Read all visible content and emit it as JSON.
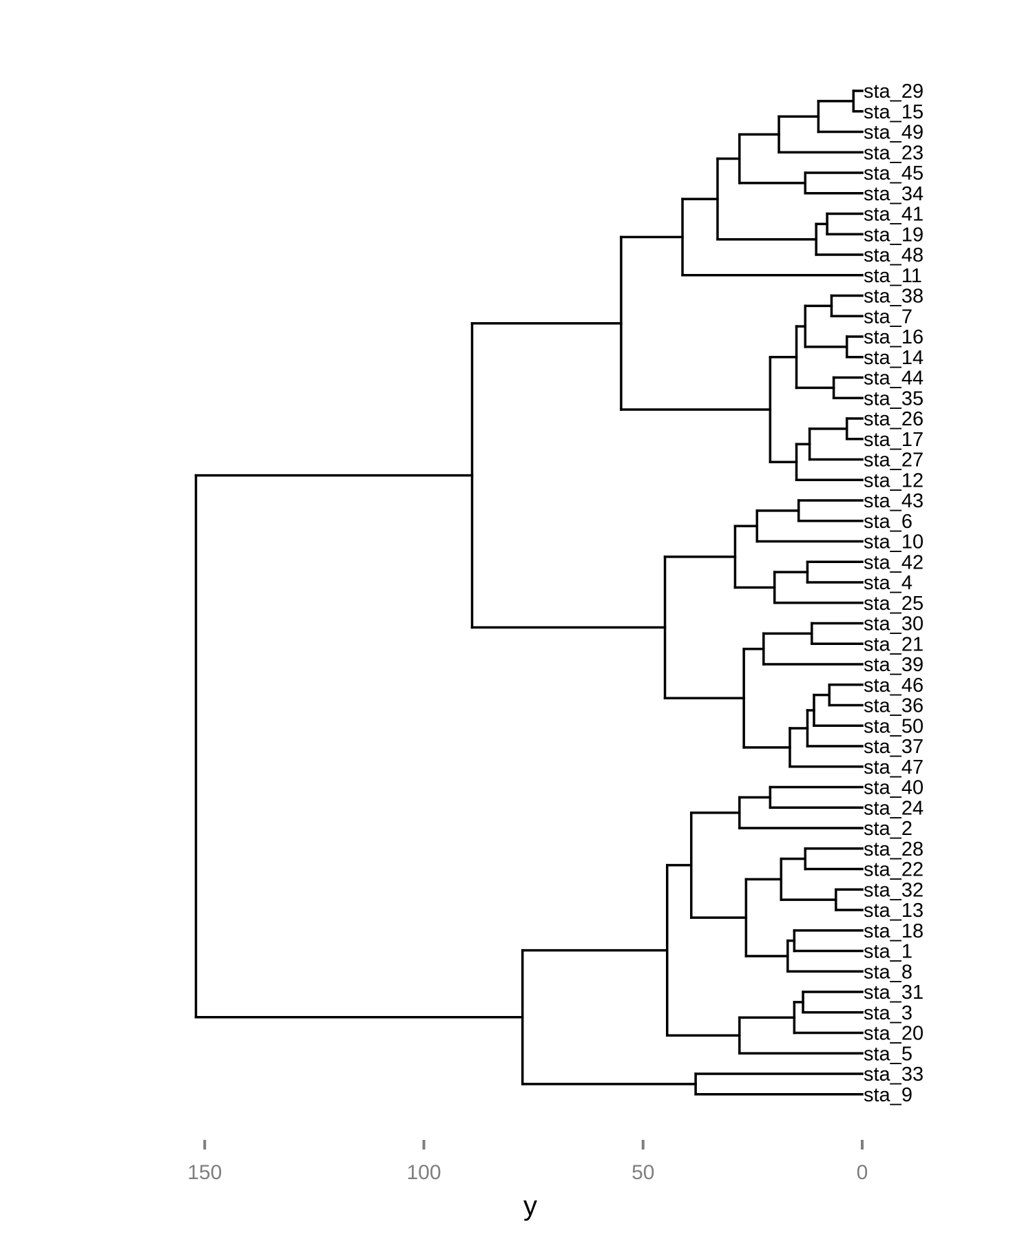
{
  "chart_data": {
    "type": "dendrogram",
    "orientation": "horizontal",
    "xlabel": "y",
    "x_ticks": [
      150,
      100,
      50,
      0
    ],
    "x_reversed": true,
    "leaf_order": [
      "sta_29",
      "sta_15",
      "sta_49",
      "sta_23",
      "sta_45",
      "sta_34",
      "sta_41",
      "sta_19",
      "sta_48",
      "sta_11",
      "sta_38",
      "sta_7",
      "sta_16",
      "sta_14",
      "sta_44",
      "sta_35",
      "sta_26",
      "sta_17",
      "sta_27",
      "sta_12",
      "sta_43",
      "sta_6",
      "sta_10",
      "sta_42",
      "sta_4",
      "sta_25",
      "sta_30",
      "sta_21",
      "sta_39",
      "sta_46",
      "sta_36",
      "sta_50",
      "sta_37",
      "sta_47",
      "sta_40",
      "sta_24",
      "sta_2",
      "sta_28",
      "sta_22",
      "sta_32",
      "sta_13",
      "sta_18",
      "sta_1",
      "sta_8",
      "sta_31",
      "sta_3",
      "sta_20",
      "sta_5",
      "sta_33",
      "sta_9"
    ],
    "tree": {
      "h": 152,
      "c": [
        {
          "h": 89,
          "c": [
            {
              "h": 55,
              "c": [
                {
                  "h": 41,
                  "c": [
                    {
                      "h": 33,
                      "c": [
                        {
                          "h": 28,
                          "c": [
                            {
                              "h": 19,
                              "c": [
                                {
                                  "h": 10,
                                  "c": [
                                    {
                                      "h": 2,
                                      "c": [
                                        "sta_29",
                                        "sta_15"
                                      ]
                                    },
                                    "sta_49"
                                  ]
                                },
                                "sta_23"
                              ]
                            },
                            {
                              "h": 13,
                              "c": [
                                "sta_45",
                                "sta_34"
                              ]
                            }
                          ]
                        },
                        {
                          "h": 10.5,
                          "c": [
                            {
                              "h": 8,
                              "c": [
                                "sta_41",
                                "sta_19"
                              ]
                            },
                            "sta_48"
                          ]
                        }
                      ]
                    },
                    "sta_11"
                  ]
                },
                {
                  "h": 21,
                  "c": [
                    {
                      "h": 15,
                      "c": [
                        {
                          "h": 13,
                          "c": [
                            {
                              "h": 7,
                              "c": [
                                "sta_38",
                                "sta_7"
                              ]
                            },
                            {
                              "h": 3.5,
                              "c": [
                                "sta_16",
                                "sta_14"
                              ]
                            }
                          ]
                        },
                        {
                          "h": 6.5,
                          "c": [
                            "sta_44",
                            "sta_35"
                          ]
                        }
                      ]
                    },
                    {
                      "h": 15,
                      "c": [
                        {
                          "h": 12,
                          "c": [
                            {
                              "h": 3.5,
                              "c": [
                                "sta_26",
                                "sta_17"
                              ]
                            },
                            "sta_27"
                          ]
                        },
                        "sta_12"
                      ]
                    }
                  ]
                }
              ]
            },
            {
              "h": 45,
              "c": [
                {
                  "h": 29,
                  "c": [
                    {
                      "h": 24,
                      "c": [
                        {
                          "h": 14.5,
                          "c": [
                            "sta_43",
                            "sta_6"
                          ]
                        },
                        "sta_10"
                      ]
                    },
                    {
                      "h": 20,
                      "c": [
                        {
                          "h": 12.5,
                          "c": [
                            "sta_42",
                            "sta_4"
                          ]
                        },
                        "sta_25"
                      ]
                    }
                  ]
                },
                {
                  "h": 27,
                  "c": [
                    {
                      "h": 22.5,
                      "c": [
                        {
                          "h": 11.5,
                          "c": [
                            "sta_30",
                            "sta_21"
                          ]
                        },
                        "sta_39"
                      ]
                    },
                    {
                      "h": 16.5,
                      "c": [
                        {
                          "h": 12.5,
                          "c": [
                            {
                              "h": 11,
                              "c": [
                                {
                                  "h": 7.5,
                                  "c": [
                                    "sta_46",
                                    "sta_36"
                                  ]
                                },
                                "sta_50"
                              ]
                            },
                            "sta_37"
                          ]
                        },
                        "sta_47"
                      ]
                    }
                  ]
                }
              ]
            }
          ]
        },
        {
          "h": 77.5,
          "c": [
            {
              "h": 44.5,
              "c": [
                {
                  "h": 39,
                  "c": [
                    {
                      "h": 28,
                      "c": [
                        {
                          "h": 21,
                          "c": [
                            "sta_40",
                            "sta_24"
                          ]
                        },
                        "sta_2"
                      ]
                    },
                    {
                      "h": 26.5,
                      "c": [
                        {
                          "h": 18.5,
                          "c": [
                            {
                              "h": 13,
                              "c": [
                                "sta_28",
                                "sta_22"
                              ]
                            },
                            {
                              "h": 6,
                              "c": [
                                "sta_32",
                                "sta_13"
                              ]
                            }
                          ]
                        },
                        {
                          "h": 17,
                          "c": [
                            {
                              "h": 15.5,
                              "c": [
                                "sta_18",
                                "sta_1"
                              ]
                            },
                            "sta_8"
                          ]
                        }
                      ]
                    }
                  ]
                },
                {
                  "h": 28,
                  "c": [
                    {
                      "h": 15.5,
                      "c": [
                        {
                          "h": 13.5,
                          "c": [
                            "sta_31",
                            "sta_3"
                          ]
                        },
                        "sta_20"
                      ]
                    },
                    "sta_5"
                  ]
                }
              ]
            },
            {
              "h": 38,
              "c": [
                "sta_33",
                "sta_9"
              ]
            }
          ]
        }
      ]
    }
  }
}
